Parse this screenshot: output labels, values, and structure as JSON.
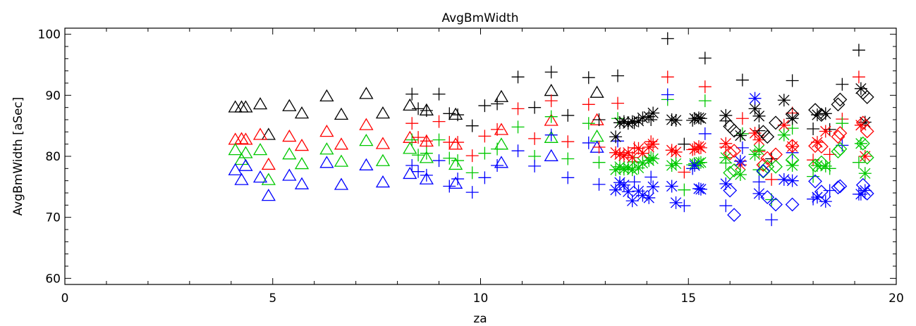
{
  "chart_data": {
    "type": "scatter",
    "title": "AvgBmWidth",
    "xlabel": "za",
    "ylabel": "AvgBmWidth [aSec]",
    "xlim": [
      0,
      20
    ],
    "ylim": [
      59,
      101
    ],
    "xticks": [
      0,
      5,
      10,
      15,
      20
    ],
    "xtick_labels": [
      "0",
      "5",
      "10",
      "15",
      "20"
    ],
    "yticks": [
      60,
      70,
      80,
      90,
      100
    ],
    "ytick_labels": [
      "60",
      "70",
      "80",
      "90",
      "100"
    ],
    "grid": false,
    "legend": "none",
    "colors": {
      "black": "#000000",
      "red": "#ff0000",
      "green": "#00c800",
      "blue": "#0000ff"
    },
    "series": [
      {
        "color": "black",
        "marker": "triangle",
        "x": [
          4.1,
          4.25,
          4.35,
          4.7,
          4.9,
          5.4,
          5.7,
          6.3,
          6.65,
          7.25,
          7.65,
          8.3,
          8.7,
          9.4,
          10.5,
          11.7,
          12.8
        ],
        "y": [
          88,
          88,
          88,
          88.5,
          83.5,
          88.2,
          87,
          89.8,
          86.8,
          90.2,
          87,
          88.3,
          87.5,
          86.8,
          89.7,
          90.7,
          90.4
        ]
      },
      {
        "color": "red",
        "marker": "triangle",
        "x": [
          4.1,
          4.25,
          4.35,
          4.7,
          4.9,
          5.4,
          5.7,
          6.3,
          6.65,
          7.25,
          7.65,
          8.3,
          8.7,
          9.4,
          10.5,
          11.7,
          12.8
        ],
        "y": [
          82.7,
          82.8,
          82.7,
          83.5,
          78.6,
          83.2,
          81.7,
          84,
          81.9,
          85.1,
          82,
          83,
          82.4,
          81.9,
          84.3,
          85.8,
          85.9
        ]
      },
      {
        "color": "green",
        "marker": "triangle",
        "x": [
          4.1,
          4.25,
          4.35,
          4.7,
          4.9,
          5.4,
          5.7,
          6.3,
          6.65,
          7.25,
          7.65,
          8.3,
          8.7,
          9.4,
          10.5,
          11.7,
          12.8
        ],
        "y": [
          81,
          79.4,
          80.5,
          81,
          76.1,
          80.3,
          78.7,
          81.1,
          79.1,
          82.5,
          79.2,
          81.2,
          79.7,
          78.6,
          81.9,
          83,
          83.2
        ]
      },
      {
        "color": "blue",
        "marker": "triangle",
        "x": [
          4.1,
          4.25,
          4.35,
          4.7,
          4.9,
          5.4,
          5.7,
          6.3,
          6.65,
          7.25,
          7.65,
          8.3,
          8.7,
          9.4,
          10.5,
          11.7,
          12.8
        ],
        "y": [
          77.7,
          76.1,
          78.4,
          76.5,
          73.5,
          76.8,
          75.4,
          78.9,
          75.3,
          78.5,
          75.7,
          77.1,
          76.2,
          75.5,
          78.9,
          80,
          81.4
        ]
      },
      {
        "color": "black",
        "marker": "plus",
        "x": [
          8.35,
          8.5,
          8.7,
          9.0,
          9.25,
          9.45,
          9.8,
          10.1,
          10.4,
          10.9,
          11.3,
          11.7,
          12.1,
          12.6,
          12.85,
          13.3,
          13.7,
          14.1,
          14.5,
          14.9,
          15.1,
          15.4,
          15.9,
          16.3,
          16.7,
          17.0,
          17.5,
          18.0,
          18.4,
          18.7,
          19.1
        ],
        "y": [
          90.2,
          87.8,
          87.5,
          90.2,
          87,
          86.8,
          85,
          88.3,
          88.6,
          93,
          88,
          93.8,
          86.7,
          92.9,
          86,
          93.2,
          85.5,
          86,
          99.3,
          82,
          85.9,
          96.1,
          85.8,
          92.5,
          84.2,
          79.6,
          92.4,
          84.5,
          84.4,
          91.8,
          97.4
        ]
      },
      {
        "color": "red",
        "marker": "plus",
        "x": [
          8.35,
          8.5,
          8.7,
          9.0,
          9.25,
          9.45,
          9.8,
          10.1,
          10.4,
          10.9,
          11.3,
          11.7,
          12.1,
          12.6,
          12.85,
          13.3,
          13.7,
          14.1,
          14.5,
          14.9,
          15.1,
          15.4,
          15.9,
          16.3,
          16.7,
          17.0,
          17.5,
          18.0,
          18.4,
          18.7,
          19.1
        ],
        "y": [
          85.4,
          83.1,
          82.5,
          85.7,
          82.3,
          82.3,
          80.1,
          83.3,
          84.4,
          87.8,
          82.9,
          89.1,
          82.4,
          88.5,
          81.5,
          88.7,
          81.4,
          82.4,
          93,
          77.4,
          81.1,
          91.4,
          81.5,
          86.2,
          80.8,
          76.2,
          87.1,
          79.4,
          80.3,
          86.1,
          93
        ]
      },
      {
        "color": "green",
        "marker": "plus",
        "x": [
          8.35,
          8.5,
          8.7,
          9.0,
          9.25,
          9.45,
          9.8,
          10.1,
          10.4,
          10.9,
          11.3,
          11.7,
          12.1,
          12.6,
          12.85,
          13.3,
          13.7,
          14.1,
          14.5,
          14.9,
          15.1,
          15.4,
          15.9,
          16.3,
          16.7,
          17.0,
          17.5,
          18.0,
          18.4,
          18.7,
          19.1
        ],
        "y": [
          82.7,
          80.2,
          80.5,
          82.7,
          79.7,
          79.3,
          77.3,
          80.5,
          81.2,
          84.8,
          80,
          86.5,
          79.6,
          85.4,
          79,
          86.2,
          79.1,
          79.8,
          89.3,
          74.5,
          78.6,
          89.1,
          78.9,
          83.7,
          77.8,
          72.9,
          84.6,
          76.7,
          78,
          85.4,
          79
        ]
      },
      {
        "color": "blue",
        "marker": "plus",
        "x": [
          8.35,
          8.5,
          8.7,
          9.0,
          9.25,
          9.45,
          9.8,
          10.1,
          10.4,
          10.9,
          11.3,
          11.7,
          12.1,
          12.6,
          12.85,
          13.3,
          13.7,
          14.1,
          14.5,
          14.9,
          15.1,
          15.4,
          15.9,
          16.3,
          16.7,
          17.0,
          17.5,
          18.0,
          18.4,
          18.7,
          19.1
        ],
        "y": [
          78.5,
          77.5,
          76.9,
          79.3,
          75.1,
          76.3,
          74.1,
          76.5,
          78.5,
          80.9,
          78.4,
          83.5,
          76.5,
          82.2,
          75.4,
          82.5,
          75.8,
          76.6,
          90.1,
          71.9,
          78,
          83.7,
          71.9,
          81.4,
          75.8,
          69.6,
          80.6,
          73,
          74.4,
          81.8,
          73.8
        ]
      },
      {
        "color": "black",
        "marker": "asterisk",
        "x": [
          13.25,
          13.35,
          13.45,
          13.55,
          13.65,
          13.8,
          13.9,
          14.05,
          14.15,
          14.6,
          14.7,
          15.15,
          15.25,
          15.3,
          15.9,
          16.25,
          16.6,
          16.7,
          17.3,
          17.5,
          18.1,
          18.3,
          19.15,
          19.25
        ],
        "y": [
          83.2,
          85.5,
          85.7,
          85.4,
          85.7,
          85.8,
          86.3,
          86.5,
          87.1,
          86,
          85.9,
          86.2,
          86.3,
          86.2,
          86.7,
          83.4,
          87.8,
          86.6,
          89.2,
          86.2,
          86.8,
          87,
          91.1,
          85.6
        ]
      },
      {
        "color": "red",
        "marker": "asterisk",
        "x": [
          13.25,
          13.35,
          13.45,
          13.55,
          13.65,
          13.8,
          13.9,
          14.05,
          14.15,
          14.6,
          14.7,
          15.15,
          15.25,
          15.3,
          15.9,
          16.25,
          16.6,
          16.7,
          17.3,
          17.5,
          18.1,
          18.3,
          19.15,
          19.25
        ],
        "y": [
          80.6,
          80.3,
          80.1,
          80.6,
          79.8,
          81.3,
          80.5,
          81.5,
          82,
          81,
          80.7,
          81.2,
          81.6,
          81.4,
          82.1,
          78.6,
          83.8,
          82.7,
          85.1,
          81.6,
          82.3,
          84.1,
          85.1,
          80
        ]
      },
      {
        "color": "green",
        "marker": "asterisk",
        "x": [
          13.25,
          13.35,
          13.45,
          13.55,
          13.65,
          13.8,
          13.9,
          14.05,
          14.15,
          14.6,
          14.7,
          15.15,
          15.25,
          15.3,
          15.9,
          16.25,
          16.6,
          16.7,
          17.3,
          17.5,
          18.1,
          18.3,
          19.15,
          19.25
        ],
        "y": [
          77.8,
          78.3,
          77.9,
          78.1,
          77.8,
          78.1,
          78.9,
          79.3,
          79.6,
          78.5,
          78.8,
          78.8,
          78.9,
          79,
          79.8,
          77,
          80.3,
          81,
          83.5,
          78.5,
          78.5,
          78.4,
          82.1,
          77.2
        ]
      },
      {
        "color": "blue",
        "marker": "asterisk",
        "x": [
          13.25,
          13.35,
          13.45,
          13.55,
          13.65,
          13.8,
          13.9,
          14.05,
          14.15,
          14.6,
          14.7,
          15.15,
          15.25,
          15.3,
          15.9,
          16.25,
          16.6,
          16.7,
          17.3,
          17.5,
          18.1,
          18.3,
          19.15,
          19.25
        ],
        "y": [
          74.5,
          75.7,
          75.3,
          74.2,
          72.7,
          74.3,
          73.6,
          73.2,
          75,
          75.1,
          72.4,
          78.5,
          74.7,
          74.6,
          75.5,
          79.2,
          89.5,
          73.9,
          76.2,
          76,
          73.3,
          72.6,
          73.8,
          74.4
        ]
      },
      {
        "color": "black",
        "marker": "diamond",
        "x": [
          16.0,
          16.1,
          16.8,
          16.9,
          17.1,
          17.5,
          18.05,
          18.2,
          18.6,
          18.65,
          19.2,
          19.3
        ],
        "y": [
          84.9,
          84.2,
          84,
          83.2,
          85.5,
          86.9,
          87.6,
          86.8,
          88.5,
          89.3,
          90.4,
          89.7
        ]
      },
      {
        "color": "red",
        "marker": "diamond",
        "x": [
          16.0,
          16.1,
          16.8,
          16.9,
          17.1,
          17.5,
          18.05,
          18.2,
          18.6,
          18.65,
          19.2,
          19.3
        ],
        "y": [
          80.5,
          80.9,
          78.6,
          79.7,
          80.3,
          81.7,
          81.7,
          81.6,
          83.2,
          83.8,
          85.5,
          84.1
        ]
      },
      {
        "color": "green",
        "marker": "diamond",
        "x": [
          16.0,
          16.1,
          16.8,
          16.9,
          17.1,
          17.5,
          18.05,
          18.2,
          18.6,
          18.65,
          19.2,
          19.3
        ],
        "y": [
          77.3,
          77.7,
          77.5,
          78.3,
          78.3,
          79.4,
          78.5,
          79,
          80.8,
          81.2,
          82.1,
          79.8
        ]
      },
      {
        "color": "blue",
        "marker": "diamond",
        "x": [
          16.0,
          16.1,
          16.8,
          16.9,
          17.1,
          17.5,
          18.05,
          18.2,
          18.6,
          18.65,
          19.2,
          19.3
        ],
        "y": [
          74.4,
          70.4,
          77.6,
          73.3,
          72.1,
          72.1,
          75.9,
          74.2,
          74.9,
          75.1,
          75.3,
          73.9
        ]
      }
    ]
  }
}
